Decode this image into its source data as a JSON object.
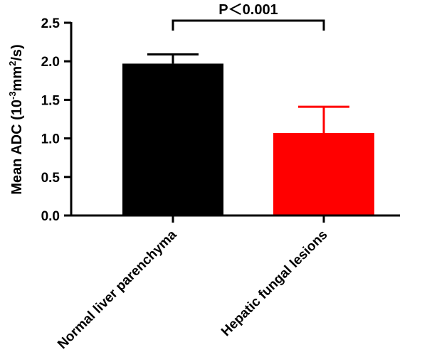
{
  "chart_data": {
    "type": "bar",
    "categories": [
      "Normal liver parenchyma",
      "Hepatic fungal lesions"
    ],
    "values": [
      1.97,
      1.07
    ],
    "errors": [
      0.12,
      0.34
    ],
    "colors": [
      "#000000",
      "#ff0000"
    ],
    "ylabel_prefix": "Mean ADC (10",
    "ylabel_exp1": "-3",
    "ylabel_mid": "mm",
    "ylabel_exp2": "2",
    "ylabel_suffix": "/s)",
    "ylim": [
      0,
      2.5
    ],
    "yticks": [
      "0.0",
      "0.5",
      "1.0",
      "1.5",
      "2.0",
      "2.5"
    ],
    "significance": {
      "label": "P＜0.001",
      "between": [
        0,
        1
      ]
    },
    "grid": false
  }
}
